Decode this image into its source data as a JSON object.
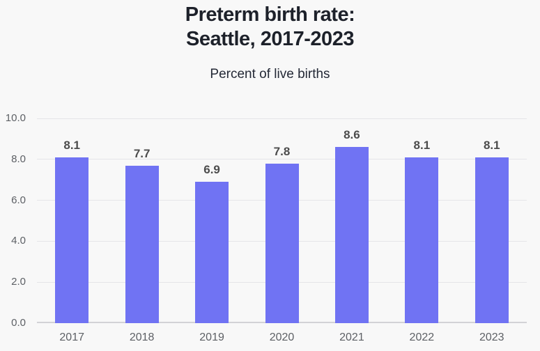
{
  "header": {
    "title": "Preterm birth rate:\nSeattle, 2017-2023",
    "subtitle": "Percent of live births"
  },
  "chart_data": {
    "type": "bar",
    "title": "Preterm birth rate: Seattle, 2017-2023",
    "subtitle": "Percent of live births",
    "categories": [
      "2017",
      "2018",
      "2019",
      "2020",
      "2021",
      "2022",
      "2023"
    ],
    "values": [
      8.1,
      7.7,
      6.9,
      7.8,
      8.6,
      8.1,
      8.1
    ],
    "value_labels": [
      "8.1",
      "7.7",
      "6.9",
      "7.8",
      "8.6",
      "8.1",
      "8.1"
    ],
    "xlabel": "",
    "ylabel": "Percent of live births",
    "ylim": [
      0,
      10
    ],
    "yticks": [
      0,
      2,
      4,
      6,
      8,
      10
    ],
    "ytick_labels": [
      "0.0",
      "2.0",
      "4.0",
      "6.0",
      "8.0",
      "10.0"
    ],
    "grid": true,
    "legend": false,
    "colors": {
      "background": "#f8f8f8",
      "bar": "#7073f3",
      "title_text": "#1d212a",
      "subtitle_text": "#242936",
      "value_label_text": "#4c4c4c",
      "axis_tick_text": "#5d6065",
      "gridline": "#e5e5e8",
      "baseline": "#d2d2d6"
    }
  }
}
